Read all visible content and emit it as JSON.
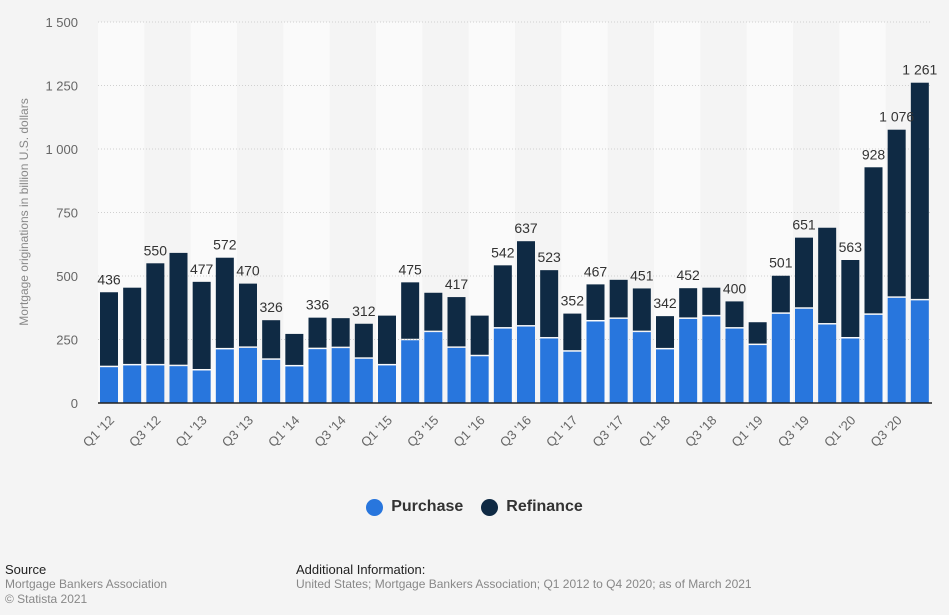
{
  "chart_data": {
    "type": "bar",
    "stacked": true,
    "title": "",
    "xlabel": "",
    "ylabel": "Mortgage originations in billion U.S. dollars",
    "ylim": [
      0,
      1500
    ],
    "yticks": [
      0,
      250,
      500,
      750,
      1000,
      1250,
      1500
    ],
    "ytick_labels": [
      "0",
      "250",
      "500",
      "750",
      "1 000",
      "1 250",
      "1 500"
    ],
    "grid": true,
    "legend_position": "bottom-center",
    "categories": [
      "Q1 '12",
      "Q2 '12",
      "Q3 '12",
      "Q4 '12",
      "Q1 '13",
      "Q2 '13",
      "Q3 '13",
      "Q4 '13",
      "Q1 '14",
      "Q2 '14",
      "Q3 '14",
      "Q4 '14",
      "Q1 '15",
      "Q2 '15",
      "Q3 '15",
      "Q4 '15",
      "Q1 '16",
      "Q2 '16",
      "Q3 '16",
      "Q4 '16",
      "Q1 '17",
      "Q2 '17",
      "Q3 '17",
      "Q4 '17",
      "Q1 '18",
      "Q2 '18",
      "Q3 '18",
      "Q4 '18",
      "Q1 '19",
      "Q2 '19",
      "Q3 '19",
      "Q4 '19",
      "Q1 '20",
      "Q2 '20",
      "Q3 '20",
      "Q4 '20"
    ],
    "xtick_labels_shown": [
      "Q1 '12",
      "Q3 '12",
      "Q1 '13",
      "Q3 '13",
      "Q1 '14",
      "Q3 '14",
      "Q1 '15",
      "Q3 '15",
      "Q1 '16",
      "Q3 '16",
      "Q1 '17",
      "Q3 '17",
      "Q1 '18",
      "Q3 '18",
      "Q1 '19",
      "Q3 '19",
      "Q1 '20",
      "Q3 '20"
    ],
    "totals": [
      436,
      454,
      550,
      591,
      477,
      572,
      470,
      326,
      272,
      336,
      334,
      312,
      344,
      475,
      434,
      417,
      344,
      542,
      637,
      523,
      352,
      467,
      485,
      451,
      342,
      452,
      454,
      400,
      318,
      501,
      651,
      690,
      563,
      928,
      1076,
      1261
    ],
    "data_labels": [
      436,
      null,
      550,
      null,
      477,
      572,
      470,
      326,
      null,
      336,
      null,
      312,
      null,
      475,
      null,
      417,
      null,
      542,
      637,
      523,
      352,
      467,
      null,
      451,
      342,
      452,
      null,
      400,
      null,
      501,
      651,
      null,
      563,
      928,
      "1 076",
      "1 261"
    ],
    "series": [
      {
        "name": "Purchase",
        "color": "#2876dd",
        "values": [
          141,
          148,
          148,
          145,
          128,
          211,
          217,
          170,
          144,
          212,
          216,
          174,
          148,
          247,
          279,
          217,
          184,
          293,
          301,
          254,
          202,
          321,
          331,
          279,
          211,
          331,
          341,
          293,
          228,
          351,
          371,
          309,
          254,
          347,
          414,
          404
        ]
      },
      {
        "name": "Refinance",
        "color": "#0f2a44",
        "values": [
          295,
          306,
          402,
          446,
          349,
          361,
          253,
          156,
          128,
          124,
          118,
          138,
          196,
          228,
          155,
          200,
          160,
          249,
          336,
          269,
          150,
          146,
          154,
          172,
          131,
          121,
          113,
          107,
          90,
          150,
          280,
          381,
          309,
          581,
          662,
          857
        ]
      }
    ]
  },
  "legend": [
    {
      "label": "Purchase",
      "color": "#2876dd"
    },
    {
      "label": "Refinance",
      "color": "#0f2a44"
    }
  ],
  "footer": {
    "source_heading": "Source",
    "source_text": "Mortgage Bankers Association",
    "copyright": "© Statista 2021",
    "info_heading": "Additional Information:",
    "info_text": "United States; Mortgage Bankers Association; Q1 2012 to Q4 2020; as of March 2021"
  }
}
